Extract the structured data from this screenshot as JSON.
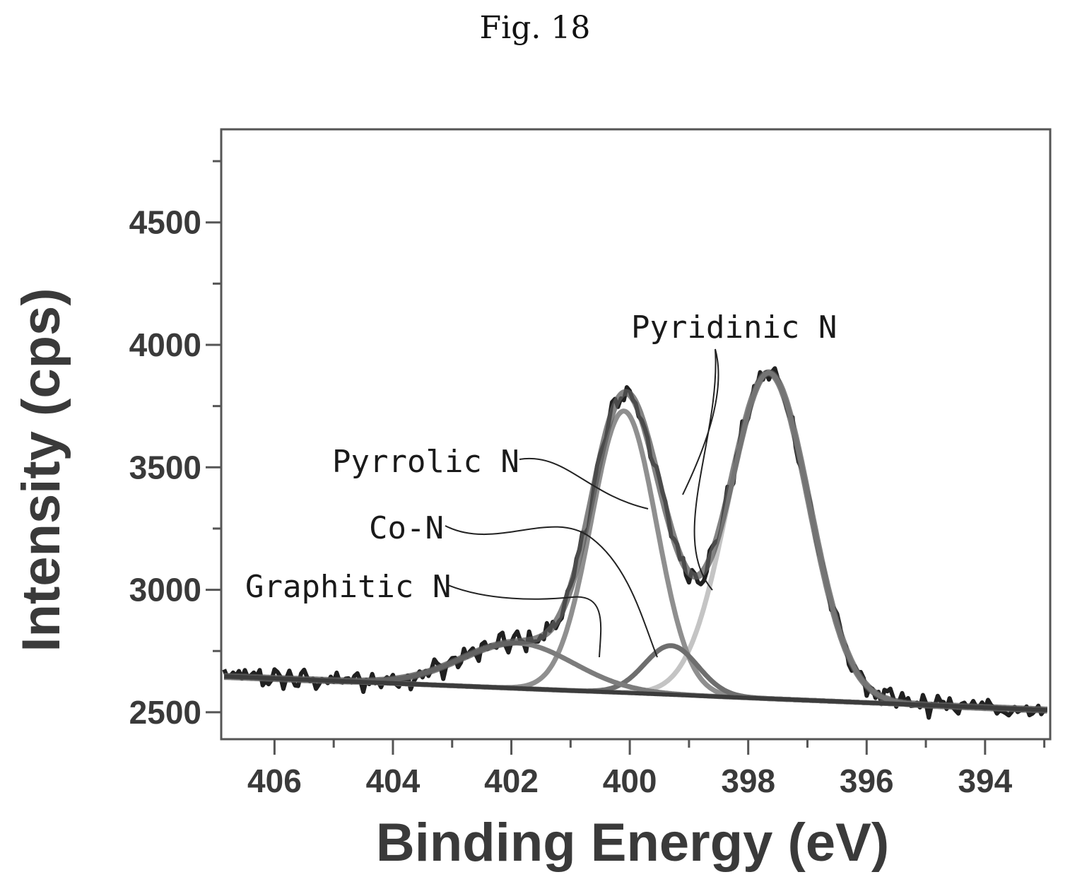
{
  "figure_label": "Fig. 18",
  "chart_data": {
    "type": "line",
    "title": "",
    "xlabel": "Binding Energy (eV)",
    "ylabel": "Intensity (cps)",
    "xlim": [
      406.9,
      392.9
    ],
    "ylim": [
      2390,
      4880
    ],
    "x_reversed": true,
    "x_ticks": [
      406,
      404,
      402,
      400,
      398,
      396,
      394
    ],
    "x_tick_labels": [
      "406",
      "404",
      "402",
      "400",
      "398",
      "396",
      "394"
    ],
    "y_ticks": [
      2500,
      3000,
      3500,
      4000,
      4500
    ],
    "y_tick_labels": [
      "2500",
      "3000",
      "3500",
      "4000",
      "4500"
    ],
    "grid": false,
    "legend": "none",
    "background": {
      "a": 2647,
      "b": -9.9,
      "x0": 406.9
    },
    "components": [
      {
        "label": "Pyridinic N",
        "center": 397.65,
        "amplitude": 1330,
        "sigma": 0.68,
        "color": "#c4c4c4"
      },
      {
        "label": "Pyrrolic N",
        "center": 400.1,
        "amplitude": 1150,
        "sigma": 0.55,
        "color": "#8f8f8f"
      },
      {
        "label": "Co-N",
        "center": 399.3,
        "amplitude": 200,
        "sigma": 0.45,
        "color": "#6e6e6e"
      },
      {
        "label": "Graphitic N",
        "center": 401.9,
        "amplitude": 185,
        "sigma": 0.95,
        "color": "#7c7c7c"
      }
    ],
    "annotations": [
      {
        "text": "Pyridinic N",
        "series": "Pyridinic N"
      },
      {
        "text": "Pyrrolic N",
        "series": "Pyrrolic N"
      },
      {
        "text": "Co-N",
        "series": "Co-N"
      },
      {
        "text": "Graphitic N",
        "series": "Graphitic N"
      }
    ],
    "colors": {
      "envelope": "#5a5a5a",
      "measured": "#202020",
      "background": "#3c3c3c"
    }
  }
}
